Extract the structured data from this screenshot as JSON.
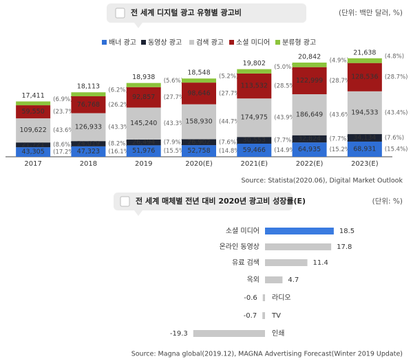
{
  "chart_data": [
    {
      "type": "stacked-bar",
      "title": "전 세계 디지털 광고 유형별 광고비",
      "unit": "(단위: 백만 달러, %)",
      "source": "Source: Statista(2020.06), Digital Market Outlook",
      "categories": [
        "2017",
        "2018",
        "2019",
        "2020(E)",
        "2021(E)",
        "2022(E)",
        "2023(E)"
      ],
      "series": [
        {
          "name": "배너 광고",
          "color": "#2f6fd6",
          "values": [
            43305,
            47323,
            51976,
            52758,
            59466,
            64935,
            68931
          ],
          "value_labels": [
            "43,305",
            "47,323",
            "51,976",
            "52,758",
            "59,466",
            "64,935",
            "68,931"
          ],
          "share_labels": [
            "(17.2%)",
            "(16.1%)",
            "(15.5%)",
            "(14.8%)",
            "(14.9%)",
            "(15.2%)",
            "(15.4%)"
          ]
        },
        {
          "name": "동영상 광고",
          "color": "#1c2333",
          "values": [
            21721,
            24019,
            26494,
            26902,
            30553,
            32824,
            34134
          ],
          "value_labels": [
            "21,721",
            "24,019",
            "26,494",
            "26,902",
            "30,553",
            "32,824",
            "34,134"
          ],
          "share_labels": [
            "(8.6%)",
            "(8.2%)",
            "(7.9%)",
            "(7.6%)",
            "(7.7%)",
            "(7.7%)",
            "(7.6%)"
          ]
        },
        {
          "name": "검색 광고",
          "color": "#c8c8c8",
          "values": [
            109622,
            126933,
            145240,
            158930,
            174975,
            186649,
            194533
          ],
          "value_labels": [
            "109,622",
            "126,933",
            "145,240",
            "158,930",
            "174,975",
            "186,649",
            "194,533"
          ],
          "share_labels": [
            "(43.6%)",
            "(43.3%)",
            "(43.3%)",
            "(44.7%)",
            "(43.9%)",
            "(43.6%)",
            "(43.4%)"
          ]
        },
        {
          "name": "소셜 미디어",
          "color": "#a01818",
          "values": [
            59550,
            76768,
            92857,
            98646,
            113532,
            122999,
            128536
          ],
          "value_labels": [
            "59,550",
            "76,768",
            "92,857",
            "98,646",
            "113,532",
            "122,999",
            "128,536"
          ],
          "share_labels": [
            "(23.7%)",
            "(26.2%)",
            "(27.7%)",
            "(27.7%)",
            "(28.5%)",
            "(28.7%)",
            "(28.7%)"
          ]
        },
        {
          "name": "분류형 광고",
          "color": "#8cc43c",
          "values": [
            17411,
            18113,
            18938,
            18548,
            19802,
            20842,
            21638
          ],
          "value_labels": [
            "17,411",
            "18,113",
            "18,938",
            "18,548",
            "19,802",
            "20,842",
            "21,638"
          ],
          "share_labels": [
            "(6.9%)",
            "(6.2%)",
            "(5.6%)",
            "(5.2%)",
            "(5.0%)",
            "(4.9%)",
            "(4.8%)"
          ]
        }
      ]
    },
    {
      "type": "hbar",
      "title": "전 세계 매체별 전년 대비 2020년 광고비 성장률(E)",
      "unit": "(단위: %)",
      "source": "Source: Magna global(2019.12), MAGNA Advertising Forecast(Winter 2019 Update)",
      "categories": [
        "소셜 미디어",
        "온라인 동영상",
        "유료 검색",
        "옥외",
        "라디오",
        "TV",
        "인쇄"
      ],
      "values": [
        18.5,
        17.8,
        11.4,
        4.7,
        -0.6,
        -0.7,
        -19.3
      ],
      "colors": [
        "#3a7be0",
        "#c8c8c8",
        "#c8c8c8",
        "#c8c8c8",
        "#c8c8c8",
        "#c8c8c8",
        "#c8c8c8"
      ]
    }
  ]
}
